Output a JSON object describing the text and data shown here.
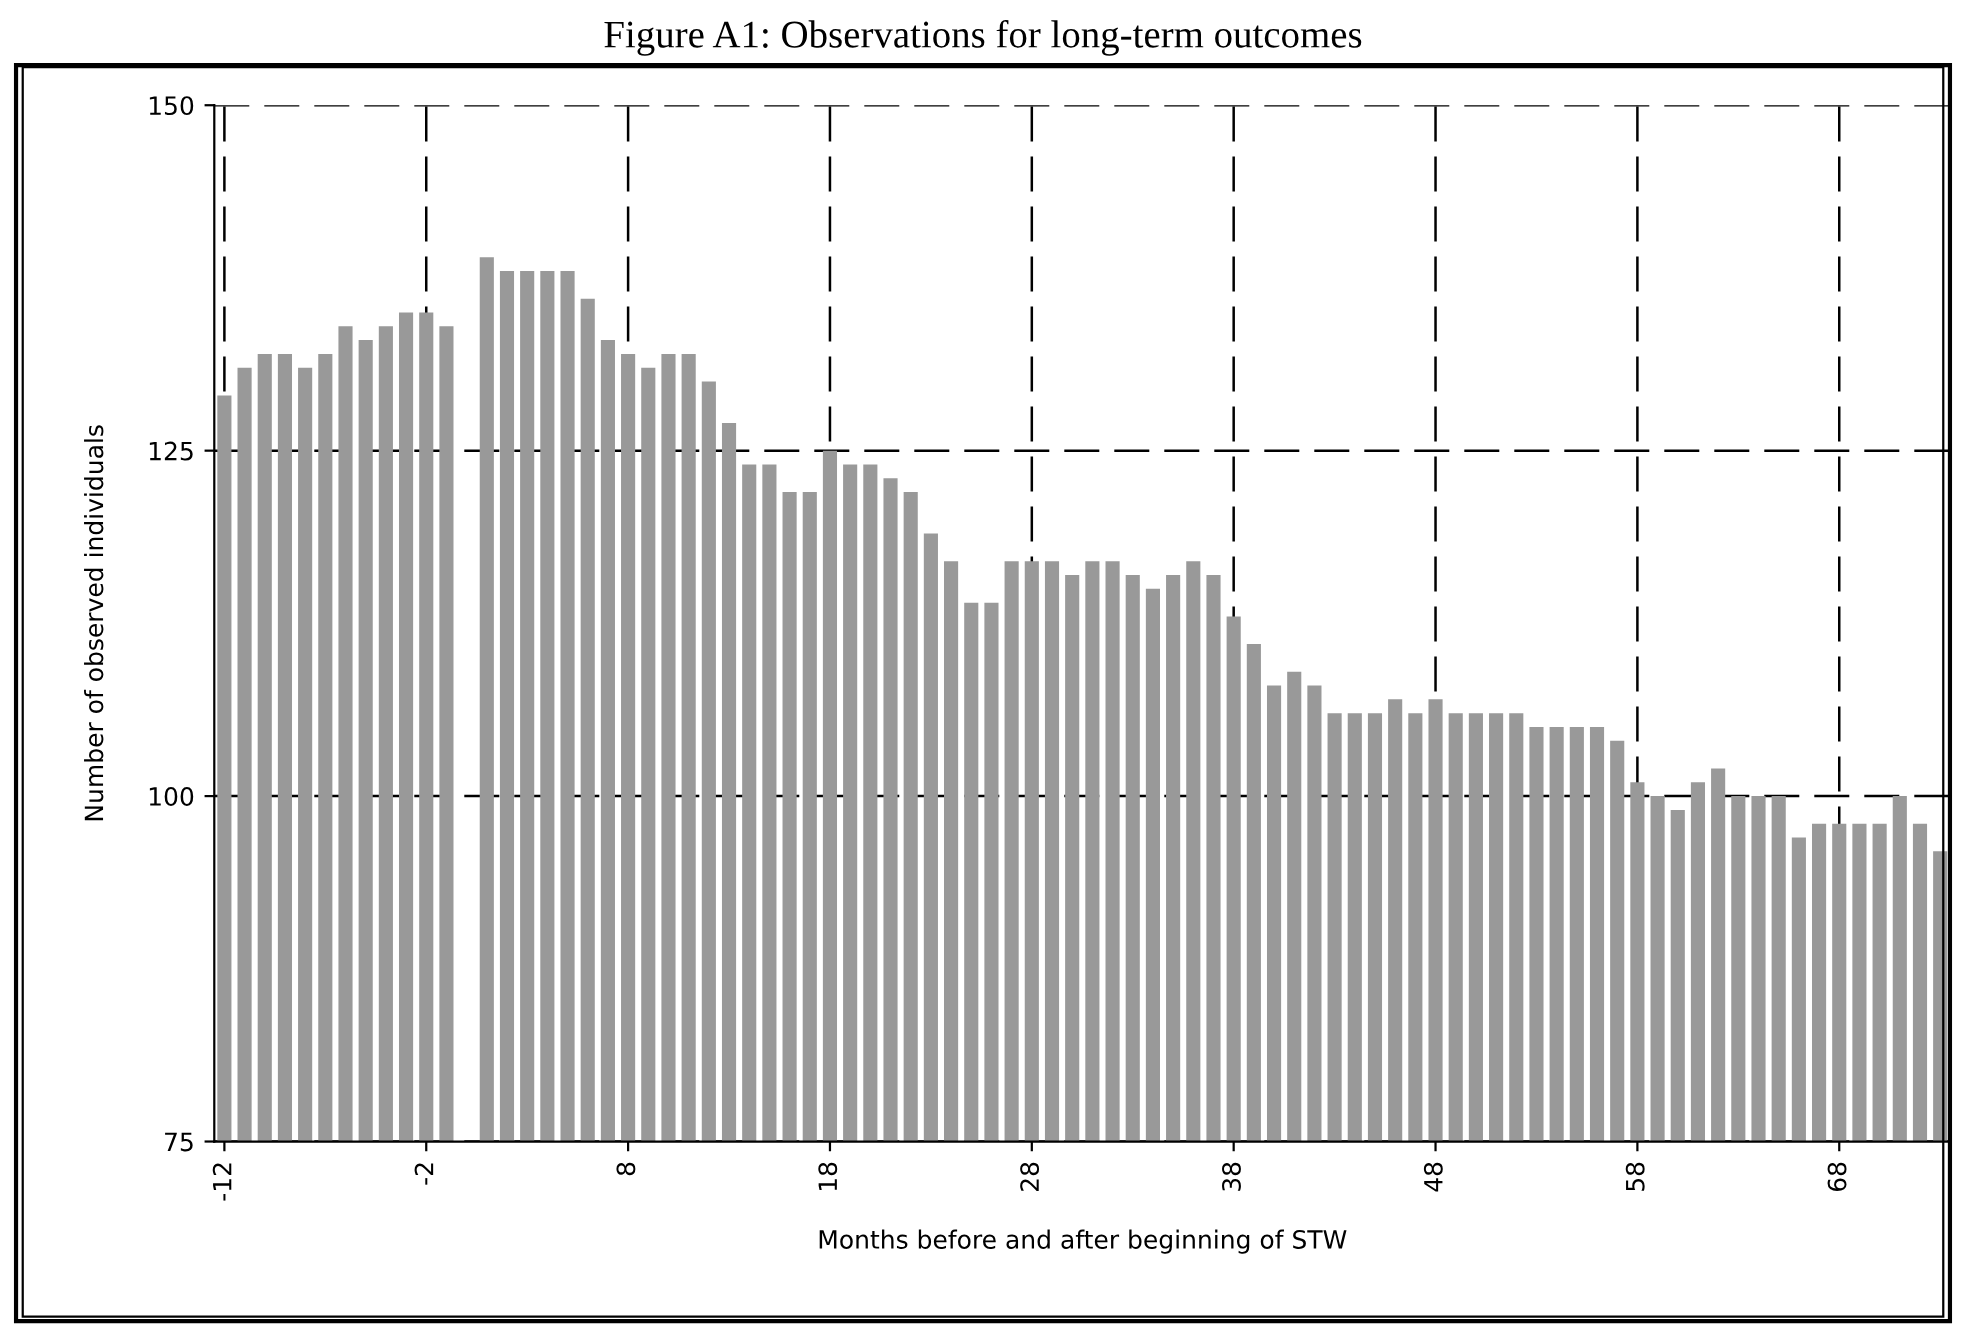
{
  "chart_data": {
    "type": "bar",
    "title": "Figure A1: Observations for long-term outcomes",
    "xlabel": "Months before and after beginning of STW",
    "ylabel": "Number of observed individuals",
    "categories": [
      "-12",
      null,
      null,
      null,
      null,
      null,
      null,
      null,
      null,
      null,
      "-2",
      null,
      null,
      null,
      null,
      null,
      null,
      null,
      null,
      null,
      "8",
      null,
      null,
      null,
      null,
      null,
      null,
      null,
      null,
      null,
      "18",
      null,
      null,
      null,
      null,
      null,
      null,
      null,
      null,
      null,
      "28",
      null,
      null,
      null,
      null,
      null,
      null,
      null,
      null,
      null,
      "38",
      null,
      null,
      null,
      null,
      null,
      null,
      null,
      null,
      null,
      "48",
      null,
      null,
      null,
      null,
      null,
      null,
      null,
      null,
      null,
      "58",
      null,
      null,
      null,
      null,
      null,
      null,
      null,
      null,
      null,
      "68",
      null,
      null,
      null,
      null,
      null
    ],
    "values": [
      129,
      131,
      132,
      132,
      131,
      132,
      134,
      133,
      134,
      135,
      135,
      134,
      null,
      139,
      138,
      138,
      138,
      138,
      136,
      133,
      132,
      131,
      132,
      132,
      130,
      127,
      124,
      124,
      122,
      122,
      125,
      124,
      124,
      123,
      122,
      119,
      117,
      114,
      114,
      117,
      117,
      117,
      116,
      117,
      117,
      116,
      115,
      116,
      117,
      116,
      113,
      111,
      108,
      109,
      108,
      106,
      106,
      106,
      107,
      106,
      107,
      106,
      106,
      106,
      106,
      105,
      105,
      105,
      105,
      104,
      101,
      100,
      99,
      101,
      102,
      100,
      100,
      100,
      97,
      98,
      98,
      98,
      98,
      100,
      98,
      96
    ],
    "color": "#999999",
    "ylim": [
      75,
      150
    ],
    "yticks": [
      75,
      100,
      125,
      150
    ],
    "grid": true
  }
}
